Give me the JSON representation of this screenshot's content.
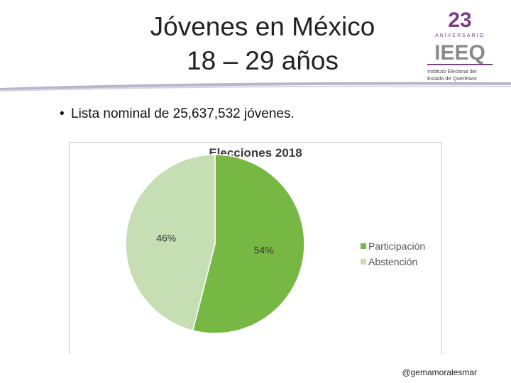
{
  "slide": {
    "title_line1": "Jóvenes en México",
    "title_line2": "18 – 29 años",
    "bullet_mark": "•",
    "bullet_text": "Lista nominal de 25,637,532 jóvenes.",
    "handle": "@gemamoralesmar"
  },
  "logo": {
    "number": "23",
    "anniversary": "ANIVERSARIO",
    "letters": "IEEQ",
    "line1": "Instituto Electoral del",
    "line2": "Estado de Querétaro"
  },
  "colors": {
    "participacion": "#76b843",
    "abstencion": "#c6deb4",
    "logo_purple": "#7a3f86",
    "logo_gray": "#8a8a8a"
  },
  "chart_data": {
    "type": "pie",
    "title": "Elecciones 2018",
    "categories": [
      "Participación",
      "Abstención"
    ],
    "values": [
      54,
      46
    ],
    "labels": [
      "54%",
      "46%"
    ],
    "legend": "right"
  }
}
